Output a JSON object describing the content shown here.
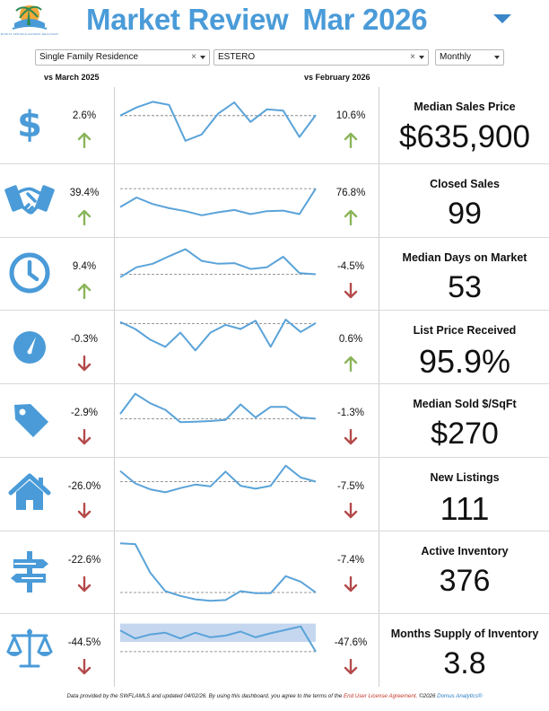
{
  "header": {
    "title": "Market Review",
    "period": "Mar 2026",
    "logo_text": "BONITA SPRINGS-ESTERO REALTORS"
  },
  "filters": {
    "property_type": "Single Family Residence",
    "area": "ESTERO",
    "frequency": "Monthly"
  },
  "columns": {
    "yoy": "vs March 2025",
    "mom": "vs February 2026"
  },
  "colors": {
    "accent": "#4a9bd8",
    "line": "#5aa3d9",
    "up": "#8ab55a",
    "down": "#b44a4a",
    "band": "#c5d7ef"
  },
  "metrics": [
    {
      "name": "Median Sales Price",
      "value": "$635,900",
      "icon": "dollar-icon",
      "yoy": "2.6%",
      "yoy_dir": "up",
      "mom": "10.6%",
      "mom_dir": "up",
      "spark": [
        34,
        21,
        12,
        17,
        74,
        64,
        31,
        13,
        44,
        24,
        26,
        68,
        33
      ],
      "ref": 34
    },
    {
      "name": "Closed Sales",
      "value": "99",
      "icon": "handshake-icon",
      "yoy": "39.4%",
      "yoy_dir": "up",
      "mom": "76.8%",
      "mom_dir": "up",
      "spark": [
        60,
        44,
        55,
        62,
        67,
        74,
        69,
        65,
        72,
        67,
        66,
        72,
        29
      ],
      "ref": 29
    },
    {
      "name": "Median Days on Market",
      "value": "53",
      "icon": "clock-icon",
      "yoy": "9.4%",
      "yoy_dir": "up",
      "mom": "-4.5%",
      "mom_dir": "down",
      "spark": [
        55,
        38,
        32,
        19,
        7,
        27,
        32,
        31,
        41,
        38,
        20,
        48,
        50
      ],
      "ref": 50
    },
    {
      "name": "List Price Received",
      "value": "95.9%",
      "icon": "gauge-icon",
      "yoy": "-0.3%",
      "yoy_dir": "down",
      "mom": "0.6%",
      "mom_dir": "up",
      "spark": [
        7,
        19,
        37,
        49,
        25,
        55,
        25,
        12,
        19,
        5,
        49,
        3,
        24,
        9
      ],
      "ref": 10
    },
    {
      "name": "Median Sold $/SqFt",
      "value": "$270",
      "icon": "price-tag-icon",
      "yoy": "-2.9%",
      "yoy_dir": "down",
      "mom": "-1.3%",
      "mom_dir": "down",
      "spark": [
        38,
        4,
        20,
        31,
        52,
        51,
        50,
        48,
        22,
        44,
        26,
        26,
        44,
        46
      ],
      "ref": 46
    },
    {
      "name": "New Listings",
      "value": "111",
      "icon": "house-icon",
      "yoy": "-26.0%",
      "yoy_dir": "down",
      "mom": "-7.5%",
      "mom_dir": "down",
      "spark": [
        10,
        31,
        41,
        46,
        39,
        33,
        36,
        11,
        35,
        40,
        35,
        1,
        21,
        28
      ],
      "ref": 28
    },
    {
      "name": "Active Inventory",
      "value": "376",
      "icon": "signpost-icon",
      "yoy": "-22.6%",
      "yoy_dir": "down",
      "mom": "-7.4%",
      "mom_dir": "down",
      "spark": [
        7,
        8,
        50,
        77,
        84,
        89,
        91,
        90,
        77,
        80,
        80,
        55,
        63,
        79
      ],
      "ref": 79
    },
    {
      "name": "Months Supply of Inventory",
      "value": "3.8",
      "icon": "scales-icon",
      "yoy": "-44.5%",
      "yoy_dir": "down",
      "mom": "-47.6%",
      "mom_dir": "down",
      "spark": [
        16,
        30,
        23,
        20,
        30,
        20,
        28,
        25,
        18,
        28,
        21,
        15,
        9,
        53
      ],
      "ref": 53
    }
  ],
  "footer": {
    "pre": "Data provided by the SWFLAMLS and updated 04/02/26.  By using this dashboard, you agree to the terms of the",
    "link": "End User License Agreement.",
    "copyright": "©2026",
    "brand": "Domus Analytics®"
  }
}
